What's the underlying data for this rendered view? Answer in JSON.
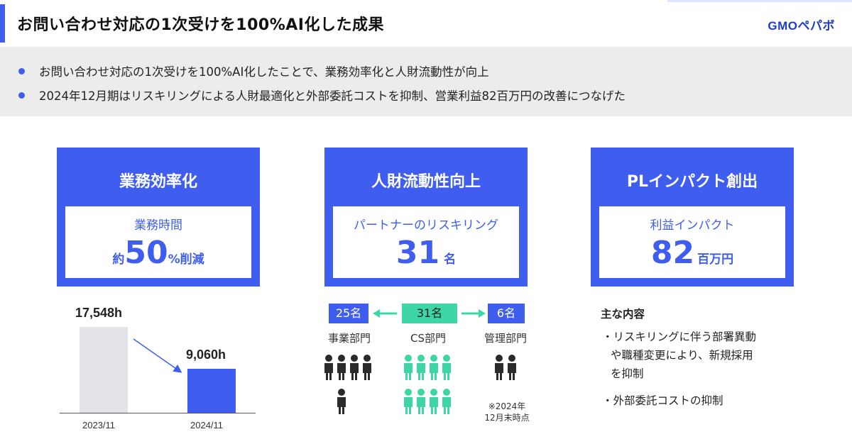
{
  "header": {
    "title": "お問い合わせ対応の1次受けを100%AI化した成果",
    "logo": "GMOペパボ"
  },
  "bullets": [
    "お問い合わせ対応の1次受けを100%AI化したことで、業務効率化と人財流動性が向上",
    "2024年12月期はリスキリングによる人財最適化と外部委託コストを抑制、営業利益82百万円の改善につなげた"
  ],
  "cards": {
    "efficiency": {
      "title": "業務効率化",
      "label": "業務時間",
      "prefix": "約",
      "value": "50",
      "suffix": "%削減"
    },
    "mobility": {
      "title": "人財流動性向上",
      "label": "パートナーのリスキリング",
      "value": "31",
      "suffix": "名"
    },
    "impact": {
      "title": "PLインパクト創出",
      "label": "利益インパクト",
      "value": "82",
      "suffix": "百万円"
    }
  },
  "chart_data": {
    "type": "bar",
    "categories": [
      "2023/11",
      "2024/11"
    ],
    "values": [
      17548,
      9060
    ],
    "value_labels": [
      "17,548h",
      "9,060h"
    ],
    "colors": [
      "#e3e4e8",
      "#3f5ef0"
    ],
    "arrow_color": "#3f5ef0"
  },
  "departments": {
    "moved_from_business": "25名",
    "cs_total": "31名",
    "moved_to_admin": "6名",
    "business": {
      "name": "事業部門",
      "people": 25
    },
    "cs": {
      "name": "CS部門",
      "people": 31
    },
    "admin": {
      "name": "管理部門",
      "people": 6
    },
    "note_line1": "※2024年",
    "note_line2": "12月末時点",
    "blue": "#3f5ef0",
    "green": "#3ed6a6"
  },
  "details": {
    "title": "主な内容",
    "item1_line1": "・リスキリングに伴う部署異動",
    "item1_line2": "や職種変更により、新規採用",
    "item1_line3": "を抑制",
    "item2": "・外部委託コストの抑制"
  }
}
